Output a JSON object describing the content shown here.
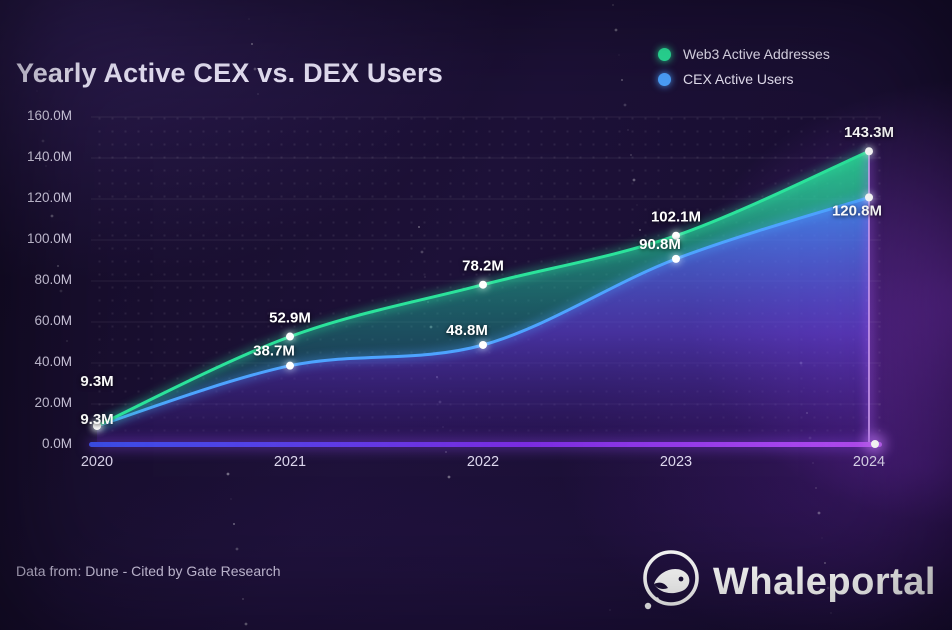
{
  "chart_data": {
    "type": "area",
    "title": "Yearly Active CEX vs. DEX Users",
    "x": [
      "2020",
      "2021",
      "2022",
      "2023",
      "2024"
    ],
    "y_ticks": [
      "0.0M",
      "20.0M",
      "40.0M",
      "60.0M",
      "80.0M",
      "100.0M",
      "120.0M",
      "140.0M",
      "160.0M"
    ],
    "ylim": [
      0,
      160
    ],
    "grid": "horizontal-lines + dot-matrix",
    "legend_position": "top-right",
    "series": [
      {
        "name": "Web3 Active Addresses",
        "color": "#2be39b",
        "values": [
          9.3,
          52.9,
          78.2,
          102.1,
          143.3
        ],
        "labels": [
          "9.3M",
          "52.9M",
          "78.2M",
          "102.1M",
          "143.3M"
        ]
      },
      {
        "name": "CEX Active Users",
        "color": "#4da3ff",
        "values": [
          9.3,
          38.7,
          48.8,
          90.8,
          120.8
        ],
        "labels": [
          "9.3M",
          "38.7M",
          "48.8M",
          "90.8M",
          "120.8M"
        ]
      }
    ]
  },
  "footer": {
    "source": "Data from: Dune - Cited by Gate Research"
  },
  "branding": {
    "name": "Whaleportal"
  },
  "colors": {
    "background": "#170e2e",
    "accent_purple": "#8b3de0",
    "baseline_left": "#3b4ee8",
    "baseline_right": "#b44df0"
  }
}
